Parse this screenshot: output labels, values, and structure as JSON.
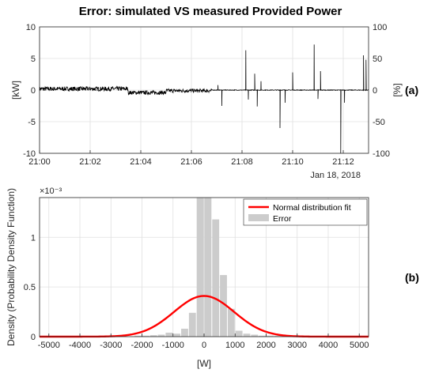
{
  "chart_data": [
    {
      "type": "line",
      "title": "Error: simulated VS measured Provided Power",
      "panel_label": "(a)",
      "ylabel_left": "[kW]",
      "ylabel_right": "[%]",
      "ylim_left": [
        -10,
        10
      ],
      "ylim_right": [
        -100,
        100
      ],
      "yticks_left": [
        "10",
        "5",
        "0",
        "-5",
        "-10"
      ],
      "yticks_right": [
        "100",
        "50",
        "0",
        "-50",
        "-100"
      ],
      "xlim": [
        "21:00",
        "21:13"
      ],
      "xticks": [
        "21:00",
        "21:02",
        "21:04",
        "21:06",
        "21:08",
        "21:10",
        "21:12"
      ],
      "date_label": "Jan 18, 2018",
      "grid": true,
      "series": [
        {
          "noise_segments": [
            {
              "from": "21:00",
              "to": "21:03.5",
              "mean": 0.2,
              "amplitude": 0.35
            },
            {
              "from": "21:03.5",
              "to": "21:05",
              "mean": -0.4,
              "amplitude": 0.3
            },
            {
              "from": "21:05",
              "to": "21:06.8",
              "mean": -0.1,
              "amplitude": 0.3
            },
            {
              "from": "21:06.8",
              "to": "21:13",
              "mean": 0,
              "amplitude": 0.05
            }
          ],
          "spikes_kw": [
            {
              "t": "21:07.05",
              "v": 0.8
            },
            {
              "t": "21:07.2",
              "v": -2.5
            },
            {
              "t": "21:08.15",
              "v": 6.3
            },
            {
              "t": "21:08.25",
              "v": -1.5
            },
            {
              "t": "21:08.5",
              "v": 2.6
            },
            {
              "t": "21:08.6",
              "v": -2.6
            },
            {
              "t": "21:08.75",
              "v": 1.4
            },
            {
              "t": "21:09.5",
              "v": -6.0
            },
            {
              "t": "21:09.7",
              "v": -2.0
            },
            {
              "t": "21:10",
              "v": 2.8
            },
            {
              "t": "21:10.85",
              "v": 7.2
            },
            {
              "t": "21:11",
              "v": -1.4
            },
            {
              "t": "21:11.1",
              "v": 3.0
            },
            {
              "t": "21:11.9",
              "v": -10.0
            },
            {
              "t": "21:12.05",
              "v": -2.0
            },
            {
              "t": "21:12.8",
              "v": 5.5
            },
            {
              "t": "21:12.9",
              "v": 4.8
            }
          ]
        }
      ]
    },
    {
      "type": "bar",
      "panel_label": "(b)",
      "xlabel": "[W]",
      "ylabel": "Density (Probability Density Function)",
      "y_exponent": "×10⁻³",
      "xlim": [
        -5300,
        5300
      ],
      "ylim": [
        0,
        1.4
      ],
      "xticks": [
        "-5000",
        "-4000",
        "-3000",
        "-2000",
        "-1000",
        "0",
        "1000",
        "2000",
        "3000",
        "4000",
        "5000"
      ],
      "yticks": [
        "0",
        "0.5",
        "1"
      ],
      "grid": true,
      "legend_position": "top-right",
      "legend": [
        "Normal distribution fit",
        "Error"
      ],
      "histogram": {
        "name": "Error",
        "bin_width": 250,
        "bin_centers": [
          -2125,
          -1875,
          -1625,
          -1375,
          -1125,
          -875,
          -625,
          -375,
          -125,
          125,
          375,
          625,
          875,
          1125,
          1375,
          1625,
          1875,
          2125,
          2375
        ],
        "densities": [
          0.01,
          0.01,
          0.015,
          0.02,
          0.04,
          0.03,
          0.08,
          0.24,
          1.4,
          1.4,
          1.18,
          0.62,
          0.28,
          0.06,
          0.03,
          0.02,
          0.01,
          0.01,
          0.01
        ]
      },
      "normal_fit": {
        "name": "Normal distribution fit",
        "mean": 0,
        "std": 970,
        "peak": 0.41
      },
      "colors": {
        "fit": "#ff0000",
        "bars": "#cccccc"
      }
    }
  ]
}
